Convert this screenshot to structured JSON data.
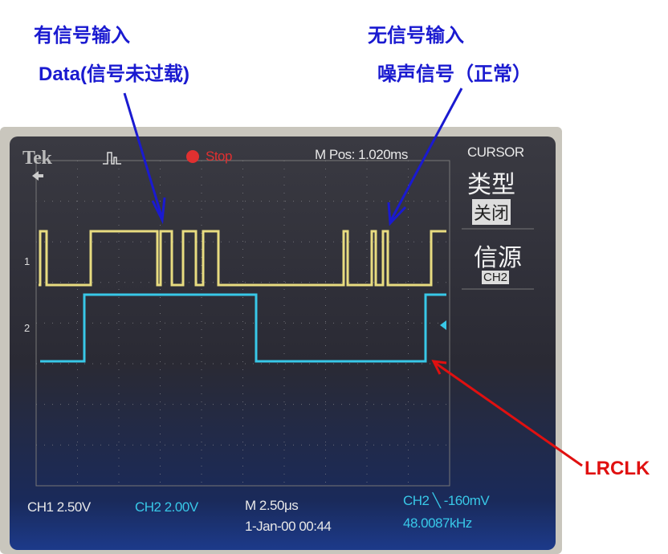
{
  "annotations": {
    "left_title": "有信号输入",
    "left_sub": "Data(信号未过载)",
    "right_title": "无信号输入",
    "right_sub": "噪声信号（正常）",
    "lrclk": "LRCLK"
  },
  "scope": {
    "brand": "Tek",
    "trigger_icon": "pulse-icon",
    "run_state": "Stop",
    "m_pos": "M Pos: 1.020ms",
    "menu_title": "CURSOR",
    "menu_type_label": "类型",
    "menu_type_value": "关闭",
    "menu_source_label": "信源",
    "menu_source_value": "CH2",
    "ch1_marker": "1",
    "ch2_marker": "2",
    "ch1_scale": "CH1  2.50V",
    "ch2_scale": "CH2  2.00V",
    "timebase": "M 2.50μs",
    "date_time": "1-Jan-00 00:44",
    "trigger_info": "CH2 ╲ -160mV",
    "frequency": "48.0087kHz"
  },
  "colors": {
    "ch1": "#e8dc80",
    "ch2": "#38c8e8",
    "annotation": "#1a1ad0",
    "lrclk_arrow": "#e01010",
    "stop": "#e03030"
  }
}
